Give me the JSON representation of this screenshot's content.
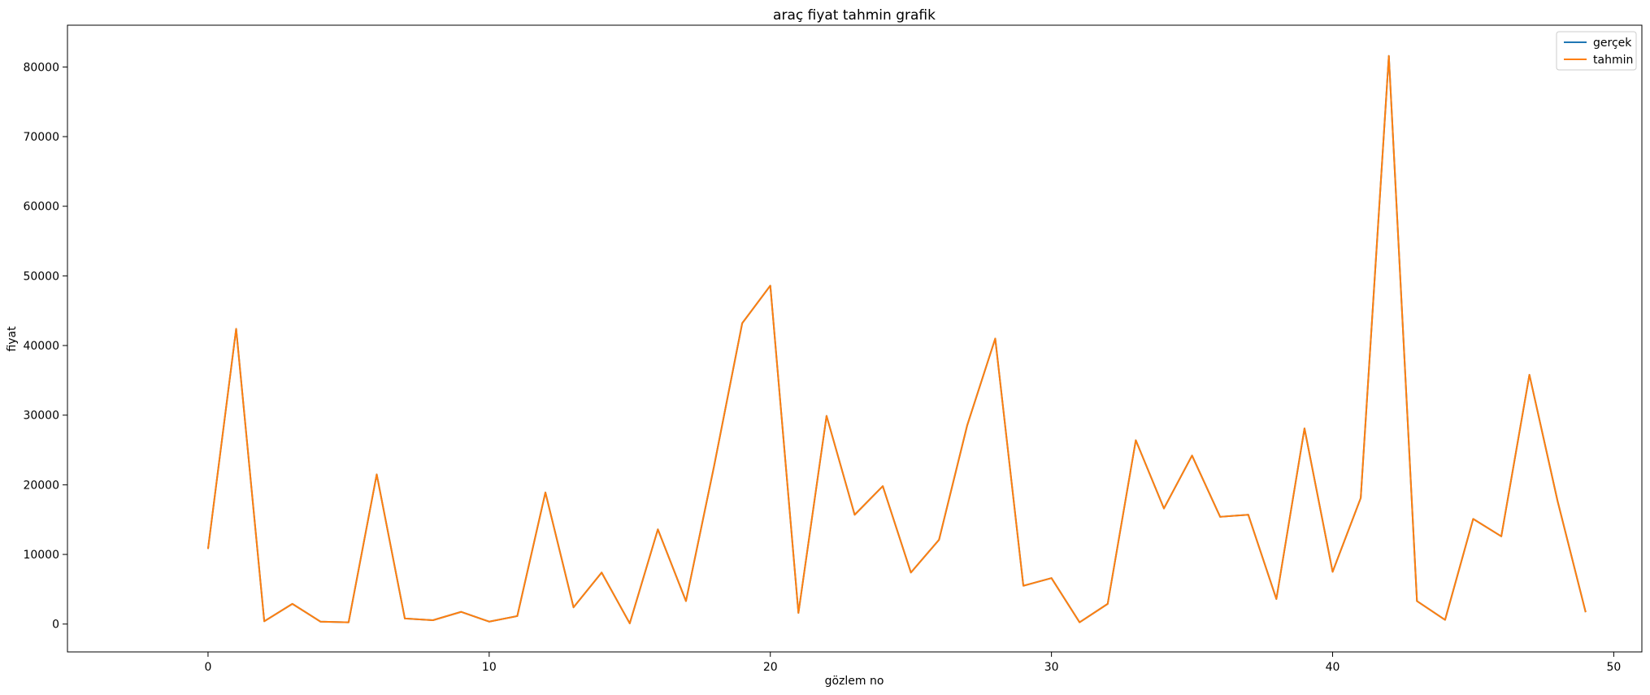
{
  "chart_data": {
    "type": "line",
    "title": "araç fiyat tahmin grafik",
    "xlabel": "gözlem no",
    "ylabel": "fiyat",
    "xlim": [
      -5,
      51
    ],
    "ylim": [
      -4000,
      86000
    ],
    "xticks": [
      0,
      10,
      20,
      30,
      40,
      50
    ],
    "yticks": [
      0,
      10000,
      20000,
      30000,
      40000,
      50000,
      60000,
      70000,
      80000
    ],
    "grid": false,
    "legend_position": "top-right",
    "x": [
      0,
      1,
      2,
      3,
      4,
      5,
      6,
      7,
      8,
      9,
      10,
      11,
      12,
      13,
      14,
      15,
      16,
      17,
      18,
      19,
      20,
      21,
      22,
      23,
      24,
      25,
      26,
      27,
      28,
      29,
      30,
      31,
      32,
      33,
      34,
      35,
      36,
      37,
      38,
      39,
      40,
      41,
      42,
      43,
      44,
      45,
      46,
      47,
      48,
      49
    ],
    "series": [
      {
        "name": "gerçek",
        "color": "#1f77b4",
        "values": [
          10800,
          42400,
          400,
          2900,
          350,
          250,
          21500,
          800,
          550,
          1750,
          350,
          1150,
          18900,
          2400,
          7400,
          100,
          13600,
          3300,
          22700,
          43200,
          48600,
          1600,
          29900,
          15700,
          19800,
          7400,
          12100,
          28500,
          41000,
          5500,
          6600,
          250,
          2900,
          26400,
          16600,
          24200,
          15400,
          15700,
          3600,
          28100,
          7500,
          18100,
          81600,
          3300,
          600,
          15100,
          12600,
          35800,
          17700,
          1700
        ]
      },
      {
        "name": "tahmin",
        "color": "#ff7f0e",
        "values": [
          10800,
          42400,
          400,
          2900,
          350,
          250,
          21500,
          800,
          550,
          1750,
          350,
          1150,
          18900,
          2400,
          7400,
          100,
          13600,
          3300,
          22700,
          43200,
          48600,
          1600,
          29900,
          15700,
          19800,
          7400,
          12100,
          28500,
          41000,
          5500,
          6600,
          250,
          2900,
          26400,
          16600,
          24200,
          15400,
          15700,
          3600,
          28100,
          7500,
          18100,
          81600,
          3300,
          600,
          15100,
          12600,
          35800,
          17700,
          1700
        ]
      }
    ]
  }
}
